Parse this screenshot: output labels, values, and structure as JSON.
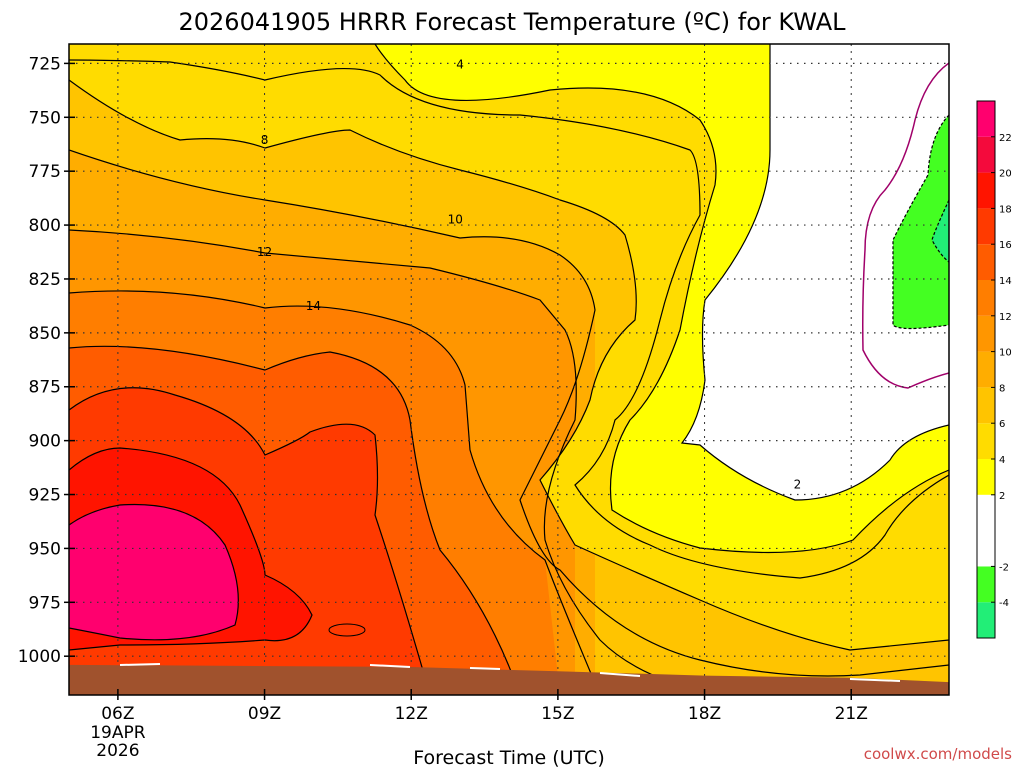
{
  "chart_data": {
    "type": "heatmap",
    "title": "2026041905 HRRR Forecast Temperature (ºC) for KWAL",
    "xlabel": "Forecast Time (UTC)",
    "ylabel": "",
    "credit": "coolwx.com/models",
    "x_ticks": [
      {
        "hour": 6,
        "label": "06Z",
        "sub": [
          "19APR",
          "2026"
        ]
      },
      {
        "hour": 9,
        "label": "09Z",
        "sub": []
      },
      {
        "hour": 12,
        "label": "12Z",
        "sub": []
      },
      {
        "hour": 15,
        "label": "15Z",
        "sub": []
      },
      {
        "hour": 18,
        "label": "18Z",
        "sub": []
      },
      {
        "hour": 21,
        "label": "21Z",
        "sub": []
      }
    ],
    "x_range_hours": [
      5,
      23
    ],
    "y_ticks": [
      725,
      750,
      775,
      800,
      825,
      850,
      875,
      900,
      925,
      950,
      975,
      1000
    ],
    "y_range_hPa": [
      716,
      1018
    ],
    "y_scale": "pressure",
    "colorbar": {
      "levels": [
        -6,
        -4,
        -2,
        0,
        2,
        4,
        6,
        8,
        10,
        12,
        14,
        16,
        18,
        20,
        22,
        24
      ],
      "labels": [
        "-4",
        "-2",
        "2",
        "4",
        "6",
        "8",
        "10",
        "12",
        "14",
        "16",
        "18",
        "20",
        "22"
      ],
      "label_values": [
        -4,
        -2,
        2,
        4,
        6,
        8,
        10,
        12,
        14,
        16,
        18,
        20,
        22
      ],
      "colors": [
        "#22ee77",
        "#44ff22",
        "#ffffff",
        "#ffffff",
        "#ffff00",
        "#ffdc00",
        "#ffc400",
        "#ffad00",
        "#ff9600",
        "#ff7e00",
        "#ff5c00",
        "#ff3a00",
        "#ff1400",
        "#f40a3c",
        "#ff006e"
      ]
    },
    "contour_labels": [
      {
        "value": "4",
        "hour": 13.0,
        "hPa": 725
      },
      {
        "value": "8",
        "hour": 9.0,
        "hPa": 760
      },
      {
        "value": "10",
        "hour": 12.9,
        "hPa": 797
      },
      {
        "value": "12",
        "hour": 9.0,
        "hPa": 812
      },
      {
        "value": "14",
        "hour": 10.0,
        "hPa": 837
      },
      {
        "value": "2",
        "hour": 19.9,
        "hPa": 920
      }
    ],
    "surface_pressure": [
      {
        "hour": 5.0,
        "hPa": 1004
      },
      {
        "hour": 12.0,
        "hPa": 1005
      },
      {
        "hour": 15.0,
        "hPa": 1007
      },
      {
        "hour": 18.0,
        "hPa": 1009
      },
      {
        "hour": 21.0,
        "hPa": 1010
      },
      {
        "hour": 23.0,
        "hPa": 1012
      }
    ],
    "grid": true,
    "legend": "colorbar-right"
  }
}
